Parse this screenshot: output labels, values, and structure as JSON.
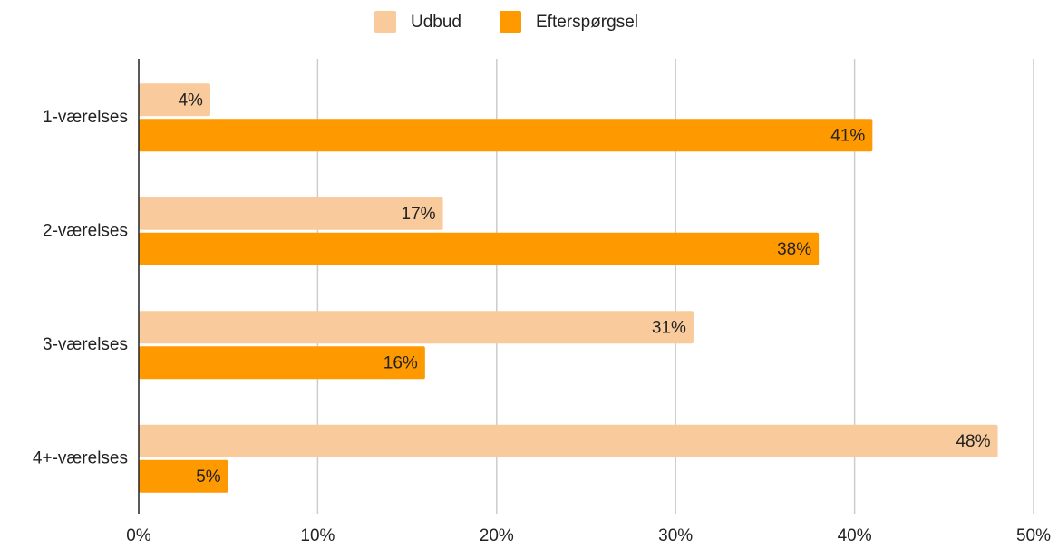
{
  "chart_data": {
    "type": "bar",
    "orientation": "horizontal",
    "categories": [
      "1-værelses",
      "2-værelses",
      "3-værelses",
      "4+-værelses"
    ],
    "series": [
      {
        "name": "Udbud",
        "color": "#f9cb9c",
        "values": [
          4,
          17,
          31,
          48
        ],
        "value_labels": [
          "4%",
          "17%",
          "31%",
          "48%"
        ]
      },
      {
        "name": "Efterspørgsel",
        "color": "#ff9900",
        "values": [
          41,
          38,
          16,
          5
        ],
        "value_labels": [
          "41%",
          "38%",
          "16%",
          "5%"
        ]
      }
    ],
    "xlim": [
      0,
      50
    ],
    "xticks": [
      {
        "value": 0,
        "label": "0%"
      },
      {
        "value": 10,
        "label": "10%"
      },
      {
        "value": 20,
        "label": "20%"
      },
      {
        "value": 30,
        "label": "30%"
      },
      {
        "value": 40,
        "label": "40%"
      },
      {
        "value": 50,
        "label": "50%"
      }
    ],
    "grid": true,
    "legend": "top"
  }
}
